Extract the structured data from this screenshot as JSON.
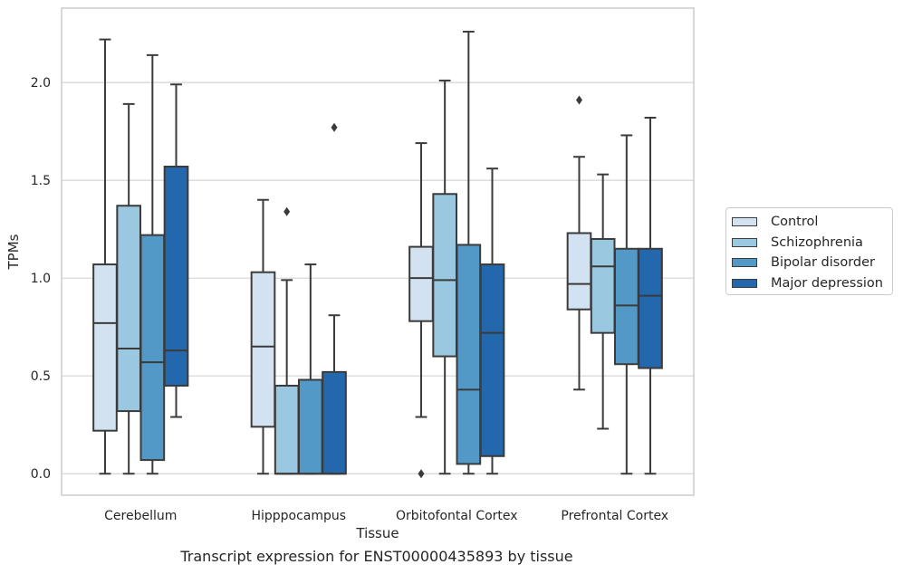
{
  "chart_data": {
    "type": "box",
    "title": "",
    "xlabel": "Tissue",
    "ylabel": "TPMs",
    "caption": "Transcript expression for ENST00000435893 by tissue",
    "ylim": [
      -0.11,
      2.38
    ],
    "yticks": [
      "0.0",
      "0.5",
      "1.0",
      "1.5",
      "2.0"
    ],
    "grid": "horizontal",
    "legend_position": "right",
    "categories": [
      "Cerebellum",
      "Hipppocampus",
      "Orbitofontal Cortex",
      "Prefrontal Cortex"
    ],
    "series": [
      {
        "name": "Control",
        "color": "#d3e2f1",
        "boxes": [
          {
            "whisker_low": 0.0,
            "q1": 0.22,
            "median": 0.77,
            "q3": 1.07,
            "whisker_high": 2.22,
            "outliers": []
          },
          {
            "whisker_low": 0.0,
            "q1": 0.24,
            "median": 0.65,
            "q3": 1.03,
            "whisker_high": 1.4,
            "outliers": []
          },
          {
            "whisker_low": 0.29,
            "q1": 0.78,
            "median": 1.0,
            "q3": 1.16,
            "whisker_high": 1.69,
            "outliers": [
              0.0
            ]
          },
          {
            "whisker_low": 0.43,
            "q1": 0.84,
            "median": 0.97,
            "q3": 1.23,
            "whisker_high": 1.62,
            "outliers": [
              1.91
            ]
          }
        ]
      },
      {
        "name": "Schizophrenia",
        "color": "#9ac8e0",
        "boxes": [
          {
            "whisker_low": 0.0,
            "q1": 0.32,
            "median": 0.64,
            "q3": 1.37,
            "whisker_high": 1.89,
            "outliers": []
          },
          {
            "whisker_low": 0.0,
            "q1": 0.0,
            "median": 0.0,
            "q3": 0.45,
            "whisker_high": 0.99,
            "outliers": [
              1.34
            ]
          },
          {
            "whisker_low": 0.0,
            "q1": 0.6,
            "median": 0.99,
            "q3": 1.43,
            "whisker_high": 2.01,
            "outliers": []
          },
          {
            "whisker_low": 0.23,
            "q1": 0.72,
            "median": 1.06,
            "q3": 1.2,
            "whisker_high": 1.53,
            "outliers": []
          }
        ]
      },
      {
        "name": "Bipolar disorder",
        "color": "#5299c8",
        "boxes": [
          {
            "whisker_low": 0.0,
            "q1": 0.07,
            "median": 0.57,
            "q3": 1.22,
            "whisker_high": 2.14,
            "outliers": []
          },
          {
            "whisker_low": 0.0,
            "q1": 0.0,
            "median": 0.0,
            "q3": 0.48,
            "whisker_high": 1.07,
            "outliers": []
          },
          {
            "whisker_low": 0.0,
            "q1": 0.05,
            "median": 0.43,
            "q3": 1.17,
            "whisker_high": 2.26,
            "outliers": []
          },
          {
            "whisker_low": 0.0,
            "q1": 0.56,
            "median": 0.86,
            "q3": 1.15,
            "whisker_high": 1.73,
            "outliers": []
          }
        ]
      },
      {
        "name": "Major depression",
        "color": "#2367ad",
        "boxes": [
          {
            "whisker_low": 0.29,
            "q1": 0.45,
            "median": 0.63,
            "q3": 1.57,
            "whisker_high": 1.99,
            "outliers": []
          },
          {
            "whisker_low": 0.0,
            "q1": 0.0,
            "median": 0.0,
            "q3": 0.52,
            "whisker_high": 0.81,
            "outliers": [
              1.77
            ]
          },
          {
            "whisker_low": 0.0,
            "q1": 0.09,
            "median": 0.72,
            "q3": 1.07,
            "whisker_high": 1.56,
            "outliers": []
          },
          {
            "whisker_low": 0.0,
            "q1": 0.54,
            "median": 0.91,
            "q3": 1.15,
            "whisker_high": 1.82,
            "outliers": []
          }
        ]
      }
    ]
  }
}
